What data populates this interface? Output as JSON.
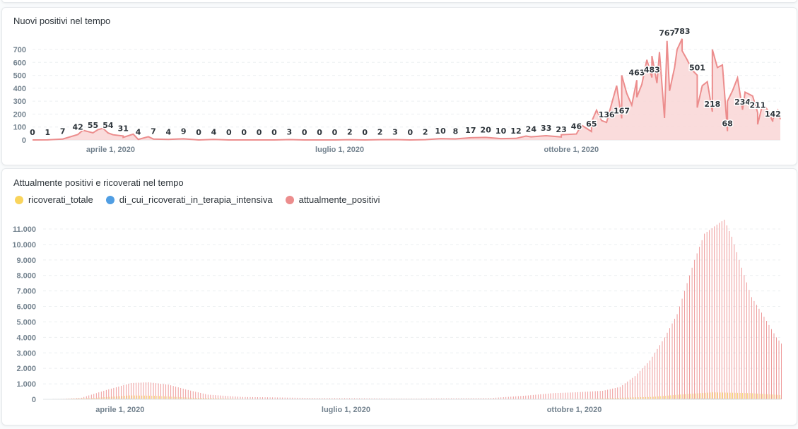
{
  "colors": {
    "positivi": "#ec8d8d",
    "positivi_fill": "#f9d6d6",
    "ricoverati": "#f9d45c",
    "intensiva": "#509ee3",
    "grid": "#eceff1",
    "axis": "#74838f"
  },
  "chart_data": [
    {
      "type": "line",
      "title": "Nuovi positivi nel tempo",
      "x_unit": "days since 2020-03-01",
      "xlim": [
        0,
        297
      ],
      "ylim": [
        0,
        750
      ],
      "yticks": [
        0,
        100,
        200,
        300,
        400,
        500,
        600,
        700
      ],
      "xticks": [
        {
          "day": 31,
          "label": "aprile 1, 2020"
        },
        {
          "day": 122,
          "label": "luglio 1, 2020"
        },
        {
          "day": 214,
          "label": "ottobre 1, 2020"
        }
      ],
      "series": [
        {
          "name": "nuovi_positivi",
          "labels": [
            0,
            1,
            7,
            42,
            55,
            54,
            31,
            4,
            7,
            4,
            9,
            0,
            4,
            0,
            0,
            0,
            0,
            3,
            0,
            0,
            0,
            2,
            0,
            2,
            3,
            0,
            2,
            10,
            8,
            17,
            20,
            10,
            12,
            24,
            33,
            23,
            46,
            65,
            136,
            167,
            463,
            483,
            767,
            783,
            501,
            218,
            68,
            234,
            211,
            142
          ],
          "label_step_days": 6,
          "extra_points": [
            [
              20,
              75
            ],
            [
              26,
              80
            ],
            [
              28,
              90
            ],
            [
              32,
              40
            ],
            [
              36,
              20
            ],
            [
              40,
              45
            ],
            [
              46,
              25
            ],
            [
              196,
              30
            ],
            [
              210,
              40
            ],
            [
              218,
              115
            ],
            [
              222,
              140
            ],
            [
              224,
              230
            ],
            [
              226,
              150
            ],
            [
              230,
              280
            ],
            [
              232,
              420
            ],
            [
              234,
              500
            ],
            [
              236,
              360
            ],
            [
              238,
              270
            ],
            [
              240,
              330
            ],
            [
              242,
              430
            ],
            [
              244,
              620
            ],
            [
              246,
              650
            ],
            [
              248,
              440
            ],
            [
              249,
              680
            ],
            [
              251,
              170
            ],
            [
              253,
              380
            ],
            [
              255,
              560
            ],
            [
              256,
              700
            ],
            [
              258,
              690
            ],
            [
              260,
              620
            ],
            [
              262,
              540
            ],
            [
              264,
              250
            ],
            [
              266,
              420
            ],
            [
              268,
              450
            ],
            [
              270,
              700
            ],
            [
              272,
              560
            ],
            [
              274,
              580
            ],
            [
              276,
              300
            ],
            [
              278,
              380
            ],
            [
              280,
              480
            ],
            [
              283,
              370
            ],
            [
              286,
              340
            ],
            [
              288,
              120
            ],
            [
              290,
              280
            ],
            [
              292,
              230
            ],
            [
              294,
              160
            ],
            [
              296,
              230
            ],
            [
              297,
              160
            ]
          ]
        }
      ]
    },
    {
      "type": "bar",
      "title": "Attualmente positivi e ricoverati nel tempo",
      "x_unit": "days since 2020-03-01",
      "xlim": [
        0,
        297
      ],
      "ylim": [
        0,
        12000
      ],
      "yticks": [
        {
          "v": 0,
          "label": "0"
        },
        {
          "v": 1000,
          "label": "1.000"
        },
        {
          "v": 2000,
          "label": "2.000"
        },
        {
          "v": 3000,
          "label": "3.000"
        },
        {
          "v": 4000,
          "label": "4.000"
        },
        {
          "v": 5000,
          "label": "5.000"
        },
        {
          "v": 6000,
          "label": "6.000"
        },
        {
          "v": 7000,
          "label": "7.000"
        },
        {
          "v": 8000,
          "label": "8.000"
        },
        {
          "v": 9000,
          "label": "9.000"
        },
        {
          "v": 10000,
          "label": "10.000"
        },
        {
          "v": 11000,
          "label": "11.000"
        }
      ],
      "xticks": [
        {
          "day": 31,
          "label": "aprile 1, 2020"
        },
        {
          "day": 122,
          "label": "luglio 1, 2020"
        },
        {
          "day": 214,
          "label": "ottobre 1, 2020"
        }
      ],
      "legend_position": "top-left",
      "series": [
        {
          "name": "ricoverati_totale",
          "points": [
            [
              3,
              0
            ],
            [
              20,
              80
            ],
            [
              35,
              250
            ],
            [
              45,
              230
            ],
            [
              60,
              100
            ],
            [
              80,
              30
            ],
            [
              180,
              10
            ],
            [
              220,
              40
            ],
            [
              245,
              150
            ],
            [
              260,
              350
            ],
            [
              270,
              450
            ],
            [
              285,
              400
            ],
            [
              297,
              280
            ]
          ]
        },
        {
          "name": "di_cui_ricoverati_in_terapia_intensiva",
          "points": [
            [
              3,
              0
            ],
            [
              35,
              40
            ],
            [
              60,
              10
            ],
            [
              220,
              5
            ],
            [
              265,
              50
            ],
            [
              297,
              30
            ]
          ]
        },
        {
          "name": "attualmente_positivi",
          "points": [
            [
              3,
              0
            ],
            [
              15,
              100
            ],
            [
              25,
              600
            ],
            [
              35,
              1050
            ],
            [
              42,
              1100
            ],
            [
              50,
              950
            ],
            [
              58,
              600
            ],
            [
              66,
              300
            ],
            [
              80,
              150
            ],
            [
              110,
              80
            ],
            [
              150,
              50
            ],
            [
              180,
              80
            ],
            [
              195,
              250
            ],
            [
              205,
              400
            ],
            [
              214,
              450
            ],
            [
              225,
              550
            ],
            [
              232,
              800
            ],
            [
              238,
              1500
            ],
            [
              244,
              2500
            ],
            [
              250,
              4000
            ],
            [
              255,
              5500
            ],
            [
              259,
              7500
            ],
            [
              262,
              9000
            ],
            [
              266,
              10700
            ],
            [
              272,
              11400
            ],
            [
              274,
              11600
            ],
            [
              277,
              10500
            ],
            [
              281,
              8500
            ],
            [
              285,
              6600
            ],
            [
              289,
              5600
            ],
            [
              292,
              4800
            ],
            [
              295,
              4000
            ],
            [
              297,
              3600
            ]
          ]
        }
      ]
    }
  ]
}
